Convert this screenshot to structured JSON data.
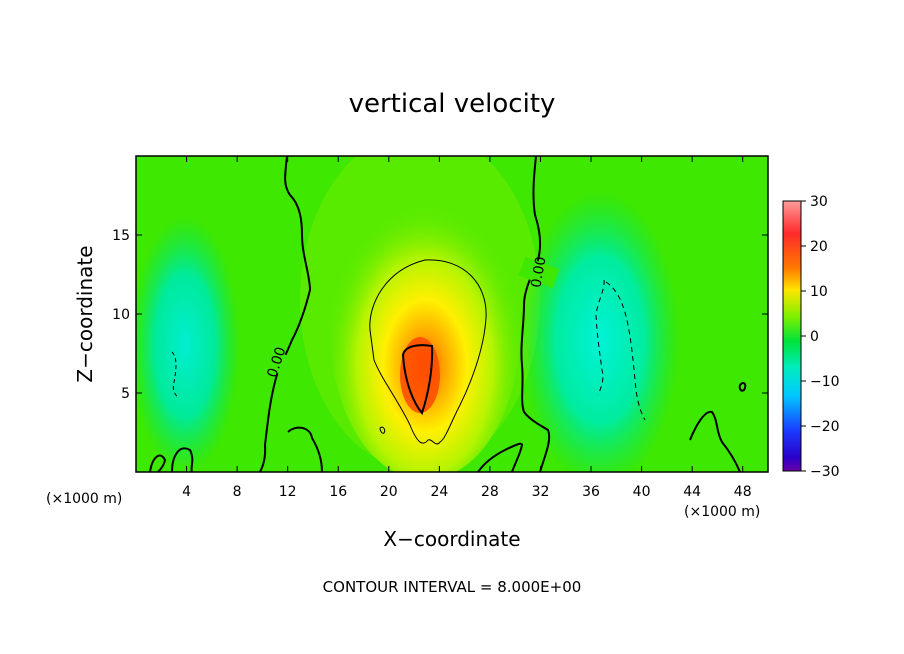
{
  "chart_data": {
    "type": "heatmap",
    "title": "vertical velocity",
    "xlabel": "X−coordinate",
    "ylabel": "Z−coordinate",
    "x_unit_left": "(×1000 m)",
    "x_unit_right": "(×1000 m)",
    "xlim": [
      0,
      50
    ],
    "ylim": [
      0,
      20
    ],
    "x_ticks": [
      4,
      8,
      12,
      16,
      20,
      24,
      28,
      32,
      36,
      40,
      44,
      48
    ],
    "y_ticks": [
      5,
      10,
      15
    ],
    "colorbar": {
      "ticks": [
        30,
        20,
        10,
        0,
        -10,
        -20,
        -30
      ],
      "tick_labels": [
        "30",
        "20",
        "10",
        "0",
        "−10",
        "−20",
        "−30"
      ],
      "range": [
        -30,
        30
      ]
    },
    "contour_labels": [
      "0.00",
      "0.00"
    ],
    "contour_interval_text": "CONTOUR INTERVAL = 8.000E+00",
    "features": [
      {
        "kind": "updraft",
        "x_center": 22.5,
        "z_center": 7,
        "max_value": 24
      },
      {
        "kind": "downdraft",
        "x_center": 38,
        "z_center": 7.5,
        "min_value": -11
      },
      {
        "kind": "downdraft",
        "x_center": 3,
        "z_center": 6.5,
        "min_value": -8
      }
    ]
  }
}
